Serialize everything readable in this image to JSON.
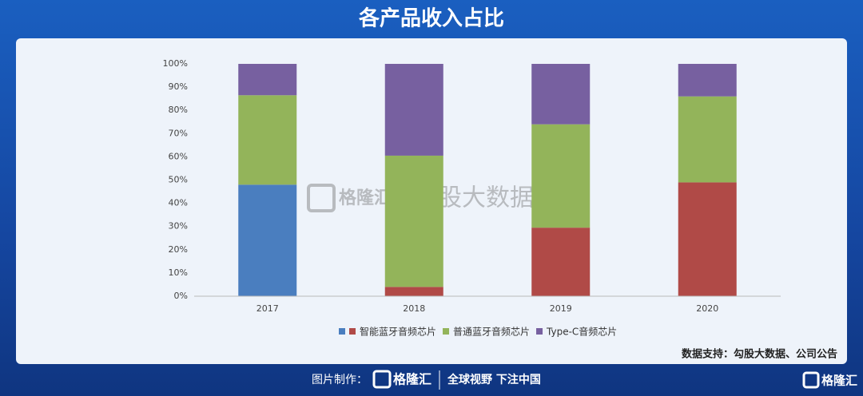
{
  "chart_data": {
    "type": "stacked_bar",
    "title": "各产品收入占比",
    "categories": [
      "2017",
      "2018",
      "2019",
      "2020"
    ],
    "series": [
      {
        "name": null,
        "color": "#4a7ebf",
        "values": [
          48,
          0,
          0,
          0
        ]
      },
      {
        "name": "智能蓝牙音频芯片",
        "color": "#b04a47",
        "values": [
          0,
          4,
          29.5,
          49
        ]
      },
      {
        "name": "普通蓝牙音频芯片",
        "color": "#93b45a",
        "values": [
          38.5,
          56.5,
          44.5,
          37
        ]
      },
      {
        "name": "Type-C音频芯片",
        "color": "#7760a0",
        "values": [
          13.5,
          39.5,
          26,
          14
        ]
      }
    ],
    "ylim": [
      0,
      100
    ],
    "yticks": [
      {
        "value": 0,
        "label": "0%"
      },
      {
        "value": 10,
        "label": "10%"
      },
      {
        "value": 20,
        "label": "20%"
      },
      {
        "value": 30,
        "label": "30%"
      },
      {
        "value": 40,
        "label": "40%"
      },
      {
        "value": 50,
        "label": "50%"
      },
      {
        "value": 60,
        "label": "60%"
      },
      {
        "value": 70,
        "label": "70%"
      },
      {
        "value": 80,
        "label": "80%"
      },
      {
        "value": 90,
        "label": "90%"
      },
      {
        "value": 100,
        "label": "100%"
      }
    ],
    "grid": false,
    "source": "数据支持：勾股大数据、公司公告"
  },
  "watermark": {
    "brand": "格隆汇",
    "partner": "勾股大数据"
  },
  "footer": {
    "label": "图片制作：",
    "brand": "格隆汇",
    "slogan": "全球视野 下注中国",
    "corner_brand": "格隆汇"
  }
}
